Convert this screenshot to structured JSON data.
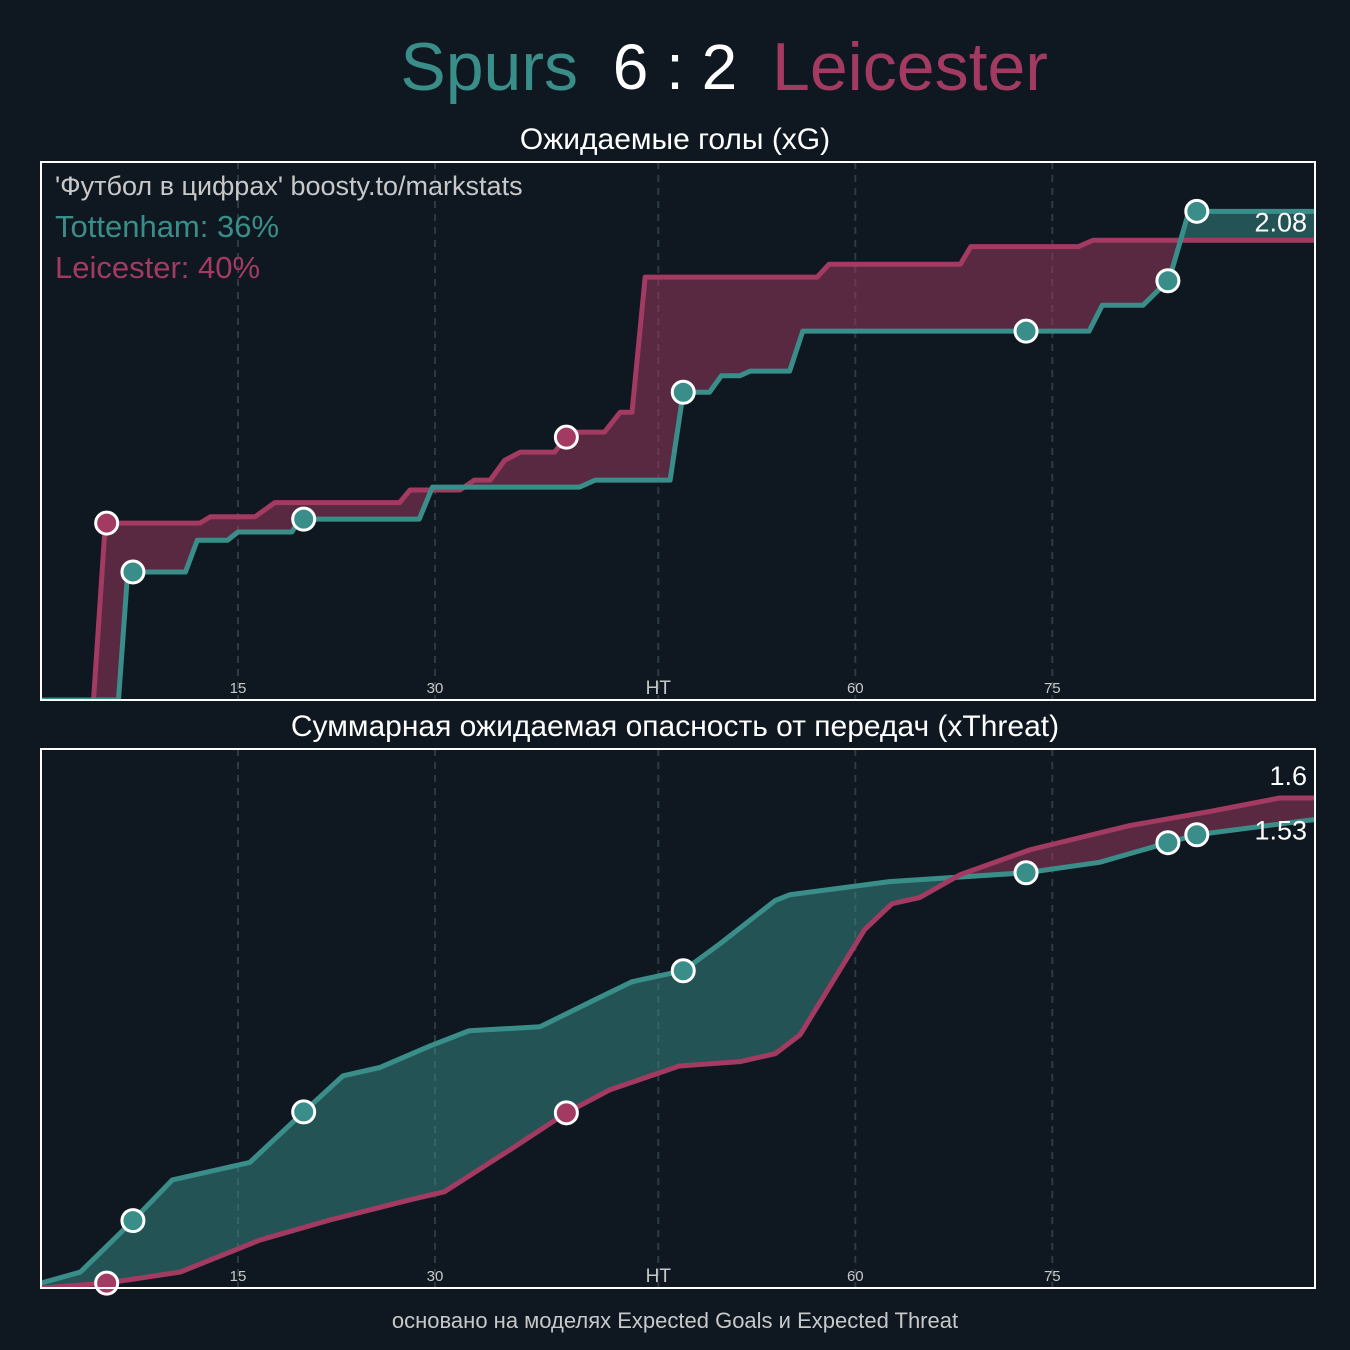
{
  "title": {
    "home": "Spurs",
    "score": "6 : 2",
    "away": "Leicester"
  },
  "footer": "основано на моделях Expected Goals и Expected Threat",
  "chart_data": [
    {
      "type": "line",
      "title": "Ожидаемые голы (xG)",
      "annotations": [
        "'Футбол в цифрах' boosty.to/markstats",
        "Tottenham: 36%",
        "Leicester: 40%"
      ],
      "xlim": [
        0,
        97
      ],
      "xticks": [
        15,
        30,
        {
          "value": 47,
          "label": "HT"
        },
        {
          "value": 62,
          "label": "60"
        },
        {
          "value": 77,
          "label": "75"
        }
      ],
      "ylim": [
        0,
        2.29
      ],
      "series": [
        {
          "color": "#a33a62",
          "end_label": false,
          "x": [
            0,
            4.0,
            4.9,
            12.1,
            12.9,
            16.3,
            17.8,
            27.3,
            28.1,
            31.9,
            33.0,
            34.2,
            35.3,
            36.5,
            39.1,
            40.3,
            42.9,
            44.1,
            45.0,
            46.0,
            59.1,
            60.0,
            70.0,
            70.8,
            79.0,
            80.1,
            97
          ],
          "values": [
            0,
            0,
            0.753,
            0.753,
            0.78,
            0.78,
            0.84,
            0.84,
            0.894,
            0.894,
            0.936,
            0.936,
            1.02,
            1.055,
            1.055,
            1.14,
            1.14,
            1.225,
            1.225,
            1.8,
            1.8,
            1.855,
            1.855,
            1.93,
            1.93,
            1.957,
            1.957
          ],
          "goals": [
            5.0,
            40.0
          ]
        },
        {
          "color": "#3a8e8a",
          "end_label": true,
          "x": [
            0,
            5.9,
            6.6,
            11.0,
            11.9,
            14.2,
            15.0,
            19.1,
            19.7,
            28.8,
            29.8,
            41.0,
            42.2,
            47.9,
            48.9,
            50.9,
            51.8,
            53.2,
            54.0,
            57.0,
            58.0,
            79.8,
            80.8,
            83.9,
            85.9,
            87.4,
            97
          ],
          "values": [
            0,
            0,
            0.545,
            0.545,
            0.68,
            0.68,
            0.715,
            0.715,
            0.77,
            0.77,
            0.906,
            0.906,
            0.936,
            0.936,
            1.31,
            1.31,
            1.38,
            1.38,
            1.4,
            1.4,
            1.57,
            1.57,
            1.68,
            1.68,
            1.79,
            2.08,
            2.08
          ],
          "goals": [
            7.0,
            20.0,
            48.9,
            75.0,
            85.8,
            88.0
          ]
        }
      ]
    },
    {
      "type": "line",
      "title": "Суммарная ожидаемая опасность от передач (xThreat)",
      "xlim": [
        0,
        97
      ],
      "xticks": [
        15,
        30,
        {
          "value": 47,
          "label": "HT"
        },
        {
          "value": 62,
          "label": "60"
        },
        {
          "value": 77,
          "label": "75"
        }
      ],
      "ylim": [
        0,
        1.76
      ],
      "series": [
        {
          "color": "#3a8e8a",
          "end_label": true,
          "x": [
            0,
            3.0,
            7.0,
            10.0,
            15.9,
            20.0,
            23.0,
            25.8,
            29.6,
            32.6,
            38.0,
            42.5,
            45.0,
            48.9,
            51.7,
            55.9,
            57.0,
            64.6,
            75.0,
            80.6,
            85.8,
            88.0,
            97
          ],
          "values": [
            0.016,
            0.052,
            0.22,
            0.353,
            0.41,
            0.575,
            0.693,
            0.72,
            0.79,
            0.84,
            0.853,
            0.948,
            1.0,
            1.036,
            1.124,
            1.265,
            1.284,
            1.327,
            1.356,
            1.39,
            1.454,
            1.48,
            1.53
          ],
          "goals": [
            7.0,
            20.0,
            48.9,
            75.0,
            85.8,
            88.0
          ]
        },
        {
          "color": "#a33a62",
          "end_label": true,
          "x": [
            0,
            5.0,
            10.6,
            16.7,
            22.0,
            28.1,
            30.7,
            35.7,
            40.0,
            43.3,
            48.6,
            53.2,
            55.9,
            57.8,
            62.7,
            64.8,
            66.9,
            70.0,
            75.3,
            82.9,
            89.0,
            94.3,
            97
          ],
          "values": [
            0,
            0.016,
            0.052,
            0.157,
            0.222,
            0.288,
            0.314,
            0.451,
            0.572,
            0.647,
            0.725,
            0.739,
            0.765,
            0.827,
            1.17,
            1.255,
            1.275,
            1.35,
            1.431,
            1.51,
            1.556,
            1.6,
            1.6
          ],
          "goals": [
            5.0,
            40.0
          ]
        }
      ]
    }
  ]
}
